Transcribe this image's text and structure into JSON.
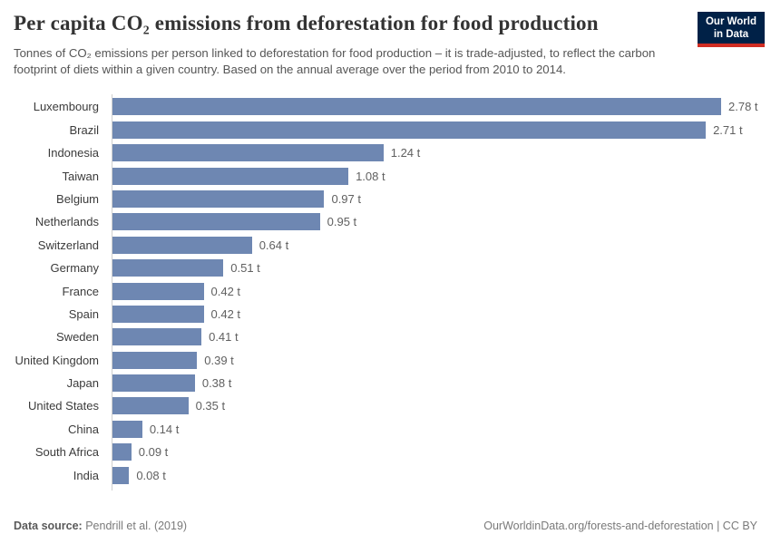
{
  "header": {
    "title": "Per capita CO₂ emissions from deforestation for food production",
    "subtitle": "Tonnes of CO₂ emissions per person linked to deforestation for food production – it is trade-adjusted, to reflect the carbon footprint of diets within a given country. Based on the annual average over the period from 2010 to 2014.",
    "logo_line1": "Our World",
    "logo_line2": "in Data"
  },
  "chart_data": {
    "type": "bar",
    "orientation": "horizontal",
    "title": "Per capita CO₂ emissions from deforestation for food production",
    "unit": "t",
    "xlim": [
      0,
      2.78
    ],
    "grid": false,
    "bar_color": "#6e87b2",
    "categories": [
      "Luxembourg",
      "Brazil",
      "Indonesia",
      "Taiwan",
      "Belgium",
      "Netherlands",
      "Switzerland",
      "Germany",
      "France",
      "Spain",
      "Sweden",
      "United Kingdom",
      "Japan",
      "United States",
      "China",
      "South Africa",
      "India"
    ],
    "values": [
      2.78,
      2.71,
      1.24,
      1.08,
      0.97,
      0.95,
      0.64,
      0.51,
      0.42,
      0.42,
      0.41,
      0.39,
      0.38,
      0.35,
      0.14,
      0.09,
      0.08
    ],
    "value_labels": [
      "2.78 t",
      "2.71 t",
      "1.24 t",
      "1.08 t",
      "0.97 t",
      "0.95 t",
      "0.64 t",
      "0.51 t",
      "0.42 t",
      "0.42 t",
      "0.41 t",
      "0.39 t",
      "0.38 t",
      "0.35 t",
      "0.14 t",
      "0.09 t",
      "0.08 t"
    ]
  },
  "footer": {
    "datasource_label": "Data source:",
    "datasource_value": " Pendrill et al. (2019)",
    "link": "OurWorldinData.org/forests-and-deforestation | CC BY"
  }
}
